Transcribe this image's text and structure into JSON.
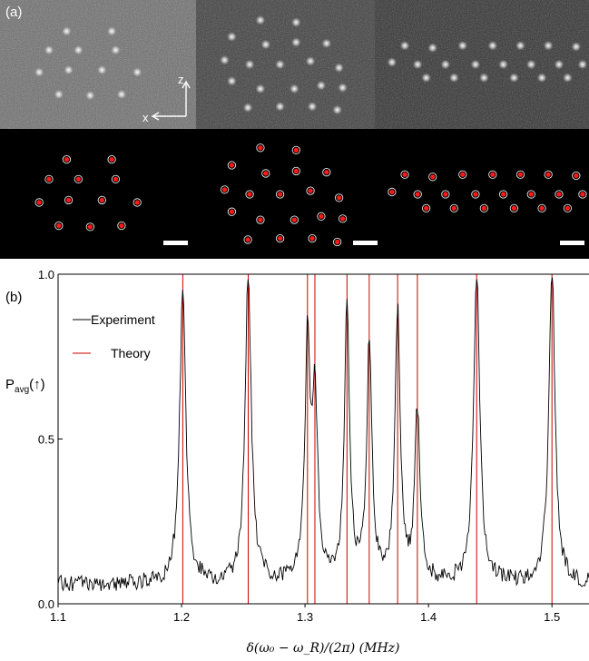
{
  "panel_a": {
    "label": "(a)",
    "axis_z": "z",
    "axis_x": "x",
    "colors": {
      "background": "#000000",
      "fit": "#ff1a1a",
      "outline": "#e8e8e8"
    },
    "crystals": [
      {
        "ions": [
          [
            0.34,
            0.2
          ],
          [
            0.57,
            0.2
          ],
          [
            0.25,
            0.37
          ],
          [
            0.4,
            0.37
          ],
          [
            0.59,
            0.37
          ],
          [
            0.2,
            0.57
          ],
          [
            0.35,
            0.55
          ],
          [
            0.52,
            0.55
          ],
          [
            0.7,
            0.57
          ],
          [
            0.3,
            0.77
          ],
          [
            0.46,
            0.78
          ],
          [
            0.62,
            0.77
          ]
        ]
      },
      {
        "ions": [
          [
            0.36,
            0.1
          ],
          [
            0.56,
            0.12
          ],
          [
            0.2,
            0.25
          ],
          [
            0.39,
            0.32
          ],
          [
            0.56,
            0.3
          ],
          [
            0.73,
            0.31
          ],
          [
            0.16,
            0.46
          ],
          [
            0.3,
            0.5
          ],
          [
            0.47,
            0.5
          ],
          [
            0.64,
            0.47
          ],
          [
            0.8,
            0.53
          ],
          [
            0.2,
            0.65
          ],
          [
            0.36,
            0.72
          ],
          [
            0.55,
            0.72
          ],
          [
            0.7,
            0.69
          ],
          [
            0.82,
            0.71
          ],
          [
            0.29,
            0.89
          ],
          [
            0.47,
            0.88
          ],
          [
            0.65,
            0.88
          ],
          [
            0.79,
            0.91
          ]
        ]
      },
      {
        "ions": [
          [
            0.08,
            0.48
          ],
          [
            0.14,
            0.33
          ],
          [
            0.2,
            0.5
          ],
          [
            0.24,
            0.62
          ],
          [
            0.27,
            0.35
          ],
          [
            0.33,
            0.5
          ],
          [
            0.37,
            0.62
          ],
          [
            0.41,
            0.33
          ],
          [
            0.47,
            0.5
          ],
          [
            0.51,
            0.62
          ],
          [
            0.55,
            0.33
          ],
          [
            0.6,
            0.5
          ],
          [
            0.65,
            0.62
          ],
          [
            0.68,
            0.33
          ],
          [
            0.73,
            0.5
          ],
          [
            0.78,
            0.62
          ],
          [
            0.81,
            0.33
          ],
          [
            0.86,
            0.5
          ],
          [
            0.9,
            0.62
          ],
          [
            0.94,
            0.34
          ],
          [
            0.97,
            0.5
          ]
        ]
      }
    ]
  },
  "panel_b": {
    "label": "(b)",
    "chart_data": {
      "type": "line",
      "xlabel": "δ(ω₀ − ω_R)/(2π) (MHz)",
      "ylabel": "P_avg(↑)",
      "xlim": [
        1.1,
        1.53
      ],
      "ylim": [
        0.0,
        1.0
      ],
      "xticks": [
        "1.1",
        "1.2",
        "1.3",
        "1.4",
        "1.5"
      ],
      "yticks": [
        "0.0",
        "0.5",
        "1.0"
      ],
      "legend": [
        {
          "name": "Experiment",
          "color": "#000000"
        },
        {
          "name": "Theory",
          "color": "#cc0000"
        }
      ],
      "theory_lines": [
        1.201,
        1.254,
        1.302,
        1.308,
        1.334,
        1.352,
        1.375,
        1.391,
        1.439,
        1.5
      ],
      "peaks": [
        {
          "x": 1.201,
          "height": 0.9,
          "width": 0.003
        },
        {
          "x": 1.254,
          "height": 0.92,
          "width": 0.003
        },
        {
          "x": 1.302,
          "height": 0.73,
          "width": 0.0025
        },
        {
          "x": 1.308,
          "height": 0.55,
          "width": 0.0025
        },
        {
          "x": 1.334,
          "height": 0.84,
          "width": 0.0025
        },
        {
          "x": 1.352,
          "height": 0.73,
          "width": 0.0025
        },
        {
          "x": 1.375,
          "height": 0.84,
          "width": 0.0025
        },
        {
          "x": 1.391,
          "height": 0.52,
          "width": 0.0025
        },
        {
          "x": 1.439,
          "height": 0.93,
          "width": 0.003
        },
        {
          "x": 1.5,
          "height": 0.95,
          "width": 0.003
        }
      ],
      "baseline": 0.06,
      "noise": 0.025
    }
  }
}
